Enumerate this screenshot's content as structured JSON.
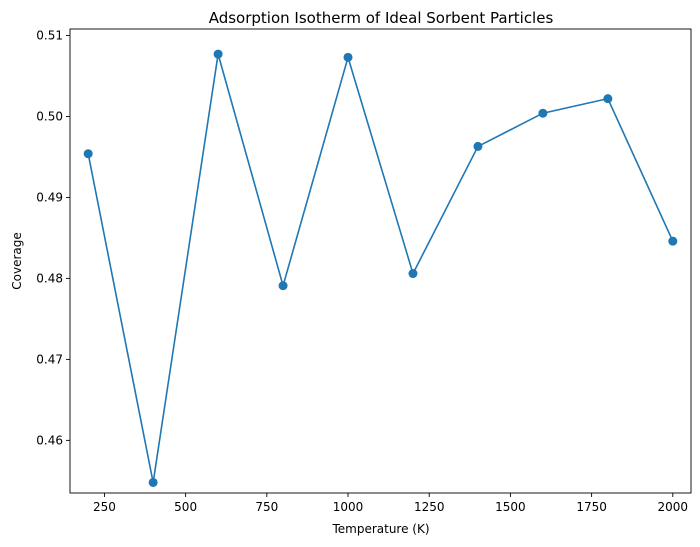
{
  "chart_data": {
    "type": "line",
    "title": "Adsorption Isotherm of Ideal Sorbent Particles",
    "xlabel": "Temperature (K)",
    "ylabel": "Coverage",
    "xlim": [
      144,
      2056
    ],
    "ylim": [
      0.4535,
      0.5108
    ],
    "xticks": [
      250,
      500,
      750,
      1000,
      1250,
      1500,
      1750,
      2000
    ],
    "xtick_labels": [
      "250",
      "500",
      "750",
      "1000",
      "1250",
      "1500",
      "1750",
      "2000"
    ],
    "yticks": [
      0.46,
      0.47,
      0.48,
      0.49,
      0.5,
      0.51
    ],
    "ytick_labels": [
      "0.46",
      "0.47",
      "0.48",
      "0.49",
      "0.50",
      "0.51"
    ],
    "grid": false,
    "series": [
      {
        "color": "#1f77b4",
        "marker": "circle",
        "x": [
          200,
          400,
          600,
          800,
          1000,
          1200,
          1400,
          1600,
          1800,
          2000
        ],
        "y": [
          0.4954,
          0.4548,
          0.5077,
          0.4791,
          0.5073,
          0.4806,
          0.4963,
          0.5004,
          0.5022,
          0.4846
        ]
      }
    ]
  }
}
